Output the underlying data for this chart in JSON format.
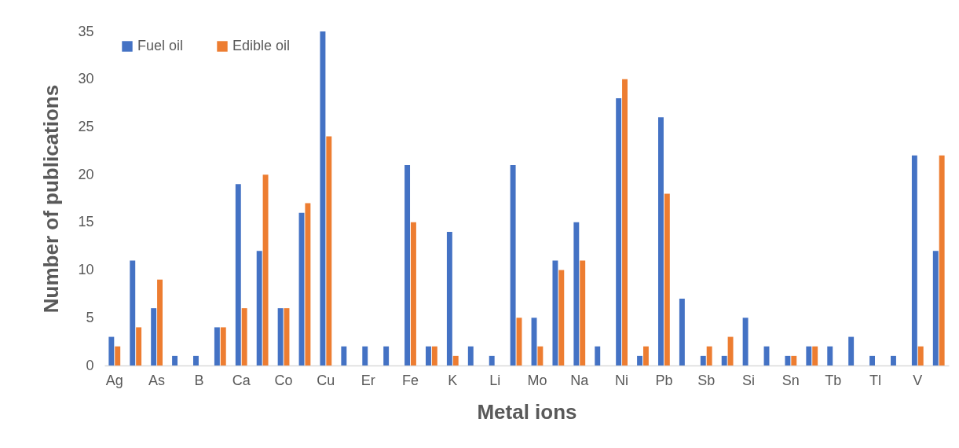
{
  "chart_data": {
    "type": "bar",
    "xlabel": "Metal ions",
    "ylabel": "Number of publications",
    "categories": [
      "Ag",
      null,
      "As",
      null,
      "B",
      null,
      "Ca",
      null,
      "Co",
      null,
      "Cu",
      null,
      "Er",
      null,
      "Fe",
      null,
      "K",
      null,
      "Li",
      null,
      "Mo",
      null,
      "Na",
      null,
      "Ni",
      null,
      "Pb",
      null,
      "Sb",
      null,
      "Si",
      null,
      "Sn",
      null,
      "Tb",
      null,
      "Tl",
      null,
      "V",
      null
    ],
    "series": [
      {
        "name": "Fuel oil",
        "color": "#4472c4",
        "values": [
          3,
          11,
          6,
          1,
          1,
          4,
          19,
          12,
          6,
          16,
          35,
          2,
          2,
          2,
          21,
          2,
          14,
          2,
          1,
          21,
          5,
          11,
          15,
          2,
          28,
          1,
          26,
          7,
          1,
          1,
          5,
          2,
          1,
          2,
          2,
          3,
          1,
          1,
          22,
          12
        ]
      },
      {
        "name": "Edible oil",
        "color": "#ed7d31",
        "values": [
          2,
          4,
          9,
          0,
          0,
          4,
          6,
          20,
          6,
          17,
          24,
          0,
          0,
          0,
          15,
          2,
          1,
          0,
          0,
          5,
          2,
          10,
          11,
          0,
          30,
          2,
          18,
          0,
          2,
          3,
          0,
          0,
          1,
          2,
          0,
          0,
          0,
          0,
          2,
          22
        ]
      }
    ],
    "ylim": [
      0,
      35
    ],
    "yticks": [
      0,
      5,
      10,
      15,
      20,
      25,
      30,
      35
    ],
    "grid": false,
    "legend": "top left"
  }
}
